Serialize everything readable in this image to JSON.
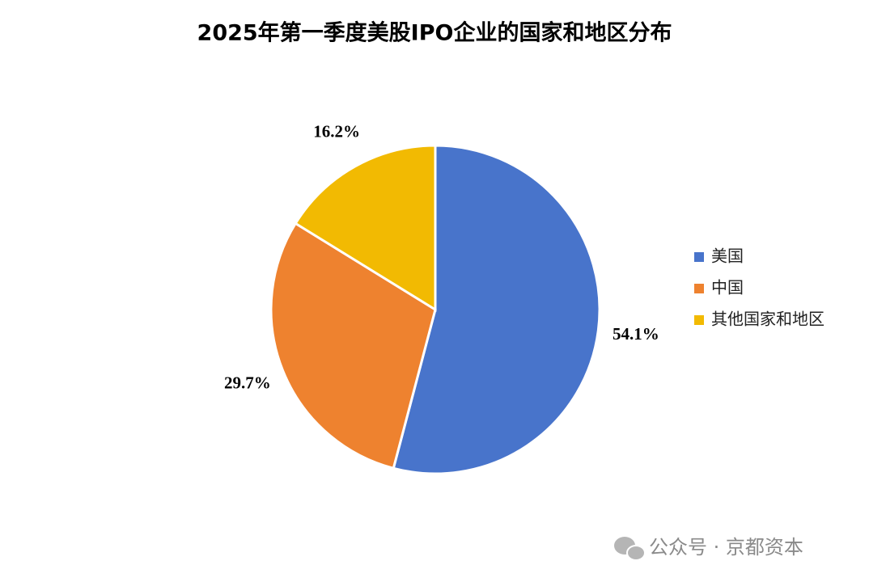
{
  "chart_data": {
    "type": "pie",
    "title": "2025年第一季度美股IPO企业的国家和地区分布",
    "categories": [
      "美国",
      "中国",
      "其他国家和地区"
    ],
    "values": [
      54.1,
      29.7,
      16.2
    ],
    "value_labels": [
      "54.1%",
      "29.7%",
      "16.2%"
    ],
    "colors": [
      "#4874cb",
      "#ee822f",
      "#f2ba02"
    ],
    "legend": "right"
  },
  "watermark": "公众号 · 京都资本"
}
